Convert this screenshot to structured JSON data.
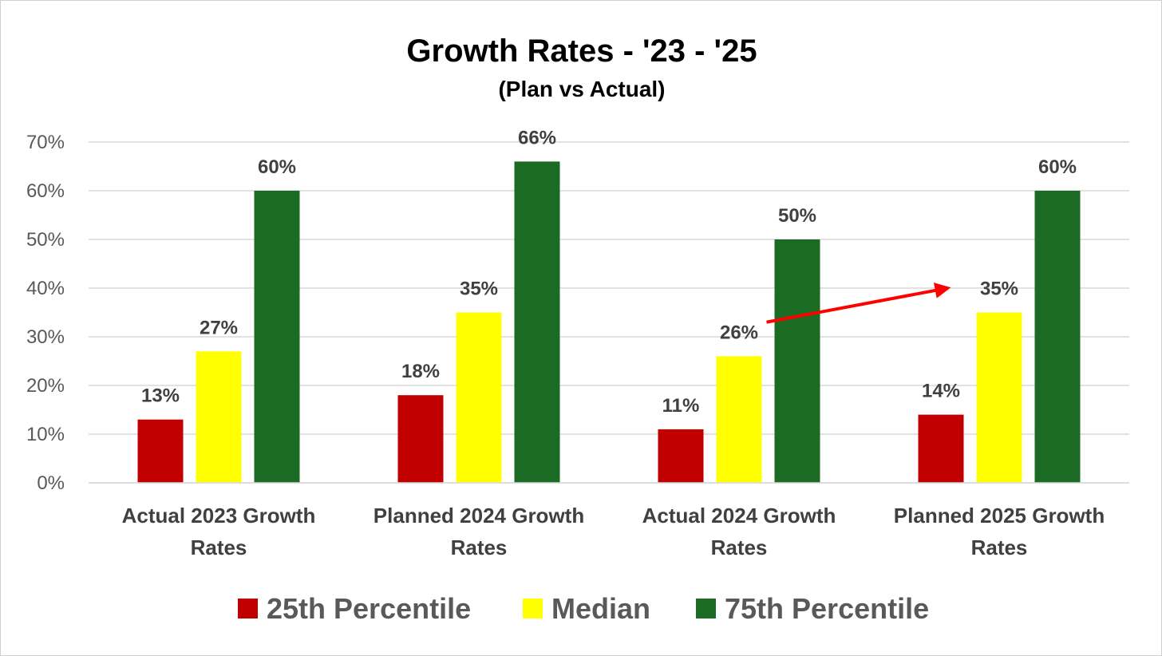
{
  "chart_data": {
    "type": "bar",
    "title": "Growth Rates - '23 - '25",
    "subtitle": "(Plan vs Actual)",
    "categories": [
      [
        "Actual 2023 Growth",
        "Rates"
      ],
      [
        "Planned 2024 Growth",
        "Rates"
      ],
      [
        "Actual 2024 Growth",
        "Rates"
      ],
      [
        "Planned 2025 Growth",
        "Rates"
      ]
    ],
    "series": [
      {
        "name": "25th Percentile",
        "color": "#C00000",
        "values": [
          13,
          18,
          11,
          14
        ],
        "labels": [
          "13%",
          "18%",
          "11%",
          "14%"
        ]
      },
      {
        "name": "Median",
        "color": "#FFFF00",
        "values": [
          27,
          35,
          26,
          35
        ],
        "labels": [
          "27%",
          "35%",
          "26%",
          "35%"
        ]
      },
      {
        "name": "75th Percentile",
        "color": "#1B6B25",
        "values": [
          60,
          66,
          50,
          60
        ],
        "labels": [
          "60%",
          "66%",
          "50%",
          "60%"
        ]
      }
    ],
    "ylim": [
      0,
      70
    ],
    "yticks": [
      0,
      10,
      20,
      30,
      40,
      50,
      60,
      70
    ],
    "ytick_labels": [
      "0%",
      "10%",
      "20%",
      "30%",
      "40%",
      "50%",
      "60%",
      "70%"
    ],
    "xlabel": "",
    "ylabel": "",
    "grid": true,
    "legend_position": "bottom",
    "annotations": [
      {
        "type": "arrow",
        "color": "#FF0000",
        "from": {
          "category": 2,
          "value": 33
        },
        "to": {
          "category": 3,
          "value": 40
        }
      }
    ]
  }
}
